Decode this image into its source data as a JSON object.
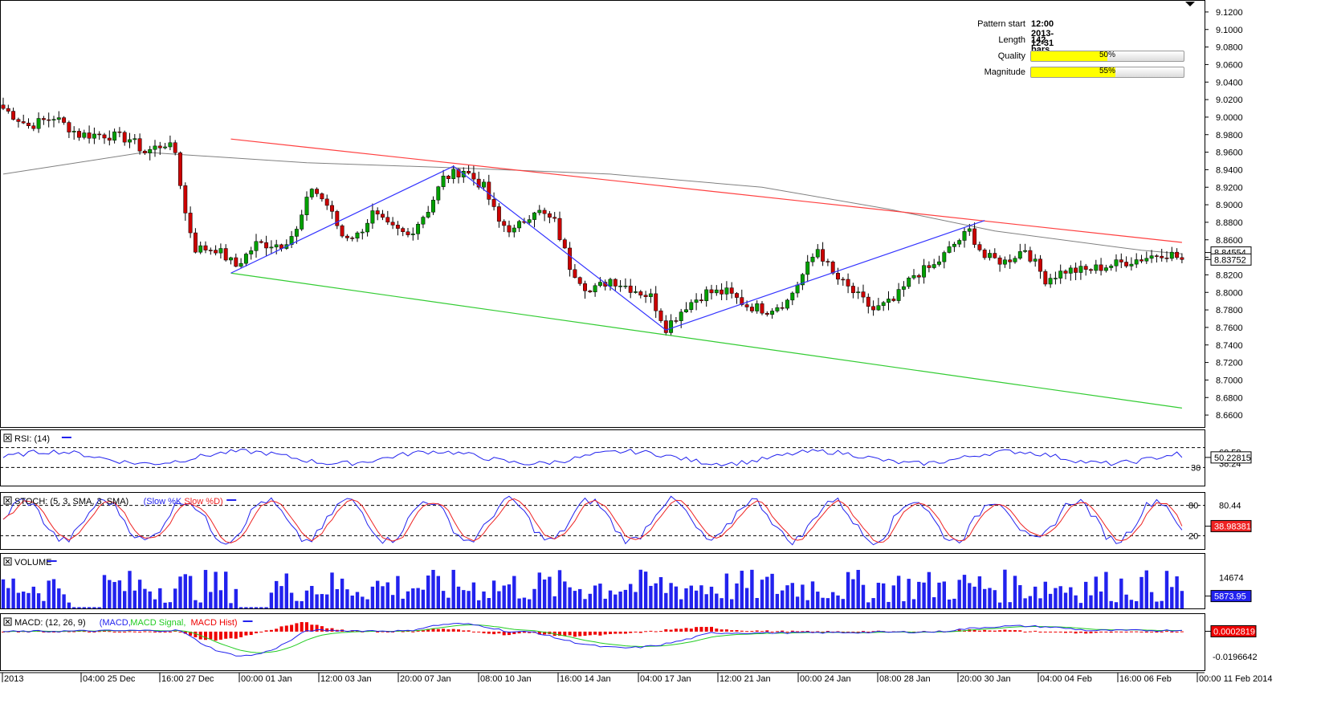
{
  "pattern_info": {
    "start_label": "Pattern start",
    "start_value": "12:00 2013-12-31",
    "length_label": "Length",
    "length_value": "142 bars",
    "quality_label": "Quality",
    "quality_value": "50%",
    "quality_fraction": 0.5,
    "magnitude_label": "Magnitude",
    "magnitude_value": "55%",
    "magnitude_fraction": 0.55
  },
  "colors": {
    "bull": "#00a000",
    "bear": "#cc0000",
    "sma": "#808080",
    "resistance": "#ff4040",
    "support": "#33cc33",
    "zigzag": "#3333ff",
    "rsi": "#2222ee",
    "stoch_k": "#2222ee",
    "stoch_d": "#ee2222",
    "volume": "#2222ee",
    "macd": "#2222ee",
    "macd_signal": "#22cc22",
    "macd_hist": "#ee0000",
    "panel_border": "#000000",
    "badge": "#ffffff"
  },
  "chart_data": {
    "type": "candlestick",
    "price_axis": {
      "min": 8.65,
      "max": 9.13,
      "ticks": [
        "9.1200",
        "9.1000",
        "9.0800",
        "9.0600",
        "9.0400",
        "9.0200",
        "9.0000",
        "8.9800",
        "8.9600",
        "8.9400",
        "8.9200",
        "8.9000",
        "8.8800",
        "8.8600",
        "8.8400",
        "8.8200",
        "8.8000",
        "8.7800",
        "8.7600",
        "8.7400",
        "8.7200",
        "8.7000",
        "8.6800",
        "8.6600"
      ],
      "badge_1": "8.84554",
      "badge_1_value": 8.8455,
      "badge_2": "8.83752",
      "badge_2_value": 8.8375
    },
    "x_axis_labels": [
      "2013",
      "04:00 25 Dec",
      "16:00 27 Dec",
      "00:00 01 Jan",
      "12:00 03 Jan",
      "20:00 07 Jan",
      "08:00 10 Jan",
      "16:00 14 Jan",
      "04:00 17 Jan",
      "12:00 21 Jan",
      "00:00 24 Jan",
      "08:00 28 Jan",
      "20:00 30 Jan",
      "04:00 04 Feb",
      "16:00 06 Feb",
      "00:00 11 Feb 2014"
    ],
    "anchors": [
      [
        0,
        9.01
      ],
      [
        5,
        8.99
      ],
      [
        10,
        9.0
      ],
      [
        15,
        8.98
      ],
      [
        20,
        8.98
      ],
      [
        25,
        8.975
      ],
      [
        28,
        8.96
      ],
      [
        32,
        8.97
      ],
      [
        34,
        8.96
      ],
      [
        36,
        8.89
      ],
      [
        38,
        8.85
      ],
      [
        42,
        8.85
      ],
      [
        46,
        8.83
      ],
      [
        50,
        8.855
      ],
      [
        55,
        8.855
      ],
      [
        58,
        8.87
      ],
      [
        61,
        8.92
      ],
      [
        64,
        8.9
      ],
      [
        67,
        8.865
      ],
      [
        70,
        8.865
      ],
      [
        73,
        8.89
      ],
      [
        76,
        8.875
      ],
      [
        80,
        8.865
      ],
      [
        84,
        8.895
      ],
      [
        87,
        8.93
      ],
      [
        91,
        8.94
      ],
      [
        95,
        8.92
      ],
      [
        98,
        8.88
      ],
      [
        101,
        8.87
      ],
      [
        105,
        8.895
      ],
      [
        109,
        8.88
      ],
      [
        112,
        8.83
      ],
      [
        116,
        8.8
      ],
      [
        120,
        8.815
      ],
      [
        124,
        8.805
      ],
      [
        128,
        8.795
      ],
      [
        131,
        8.76
      ],
      [
        135,
        8.785
      ],
      [
        139,
        8.8
      ],
      [
        143,
        8.8
      ],
      [
        147,
        8.785
      ],
      [
        151,
        8.78
      ],
      [
        155,
        8.79
      ],
      [
        158,
        8.82
      ],
      [
        161,
        8.85
      ],
      [
        164,
        8.82
      ],
      [
        168,
        8.8
      ],
      [
        172,
        8.78
      ],
      [
        176,
        8.79
      ],
      [
        180,
        8.82
      ],
      [
        184,
        8.83
      ],
      [
        188,
        8.855
      ],
      [
        191,
        8.87
      ],
      [
        194,
        8.84
      ],
      [
        198,
        8.835
      ],
      [
        202,
        8.85
      ],
      [
        206,
        8.815
      ],
      [
        210,
        8.825
      ],
      [
        214,
        8.825
      ],
      [
        218,
        8.83
      ],
      [
        222,
        8.835
      ],
      [
        226,
        8.84
      ],
      [
        229,
        8.845
      ],
      [
        231,
        8.843
      ],
      [
        233,
        8.8375
      ]
    ],
    "sma": [
      [
        0,
        8.935
      ],
      [
        28,
        8.96
      ],
      [
        60,
        8.948
      ],
      [
        90,
        8.942
      ],
      [
        120,
        8.935
      ],
      [
        150,
        8.92
      ],
      [
        175,
        8.895
      ],
      [
        196,
        8.87
      ],
      [
        225,
        8.848
      ],
      [
        233,
        8.844
      ]
    ],
    "resistance_line": [
      [
        45,
        8.975
      ],
      [
        233,
        8.857
      ]
    ],
    "support_line": [
      [
        45,
        8.822
      ],
      [
        233,
        8.668
      ]
    ],
    "zigzag": [
      [
        45,
        8.822
      ],
      [
        89,
        8.944
      ],
      [
        131,
        8.757
      ],
      [
        194,
        8.882
      ]
    ],
    "volume_axis": {
      "max": 24000,
      "tick": "14674",
      "last": "5873.95",
      "last_value": 5873.95
    },
    "rsi": {
      "label": "RSI: (14)",
      "min": 0,
      "max": 100,
      "ticks": [
        "60.58",
        "38.24",
        "30"
      ],
      "overbought": 70,
      "oversold": 30,
      "last": "50.22815",
      "last_value": 50.22815
    },
    "stoch": {
      "label": "STOCH: (5, 3, SMA, 3, SMA)",
      "series_k_label": "Slow %K",
      "series_d_label": "Slow %D",
      "min": 0,
      "max": 100,
      "ticks": [
        "80.44",
        "80",
        "20"
      ],
      "upper": 80,
      "lower": 20,
      "last": "38.98381",
      "last_value": 38.98381,
      "last_k": 31.2
    },
    "volume": {
      "label": "VOLUME"
    },
    "macd": {
      "label": "MACD: (12, 26, 9)",
      "series_labels": [
        "MACD",
        "MACD Signal",
        "MACD Hist"
      ],
      "min": -0.028,
      "max": 0.012,
      "tick": "-0.0196642",
      "last": "0.0002819",
      "last_value": 0.0002819
    }
  }
}
